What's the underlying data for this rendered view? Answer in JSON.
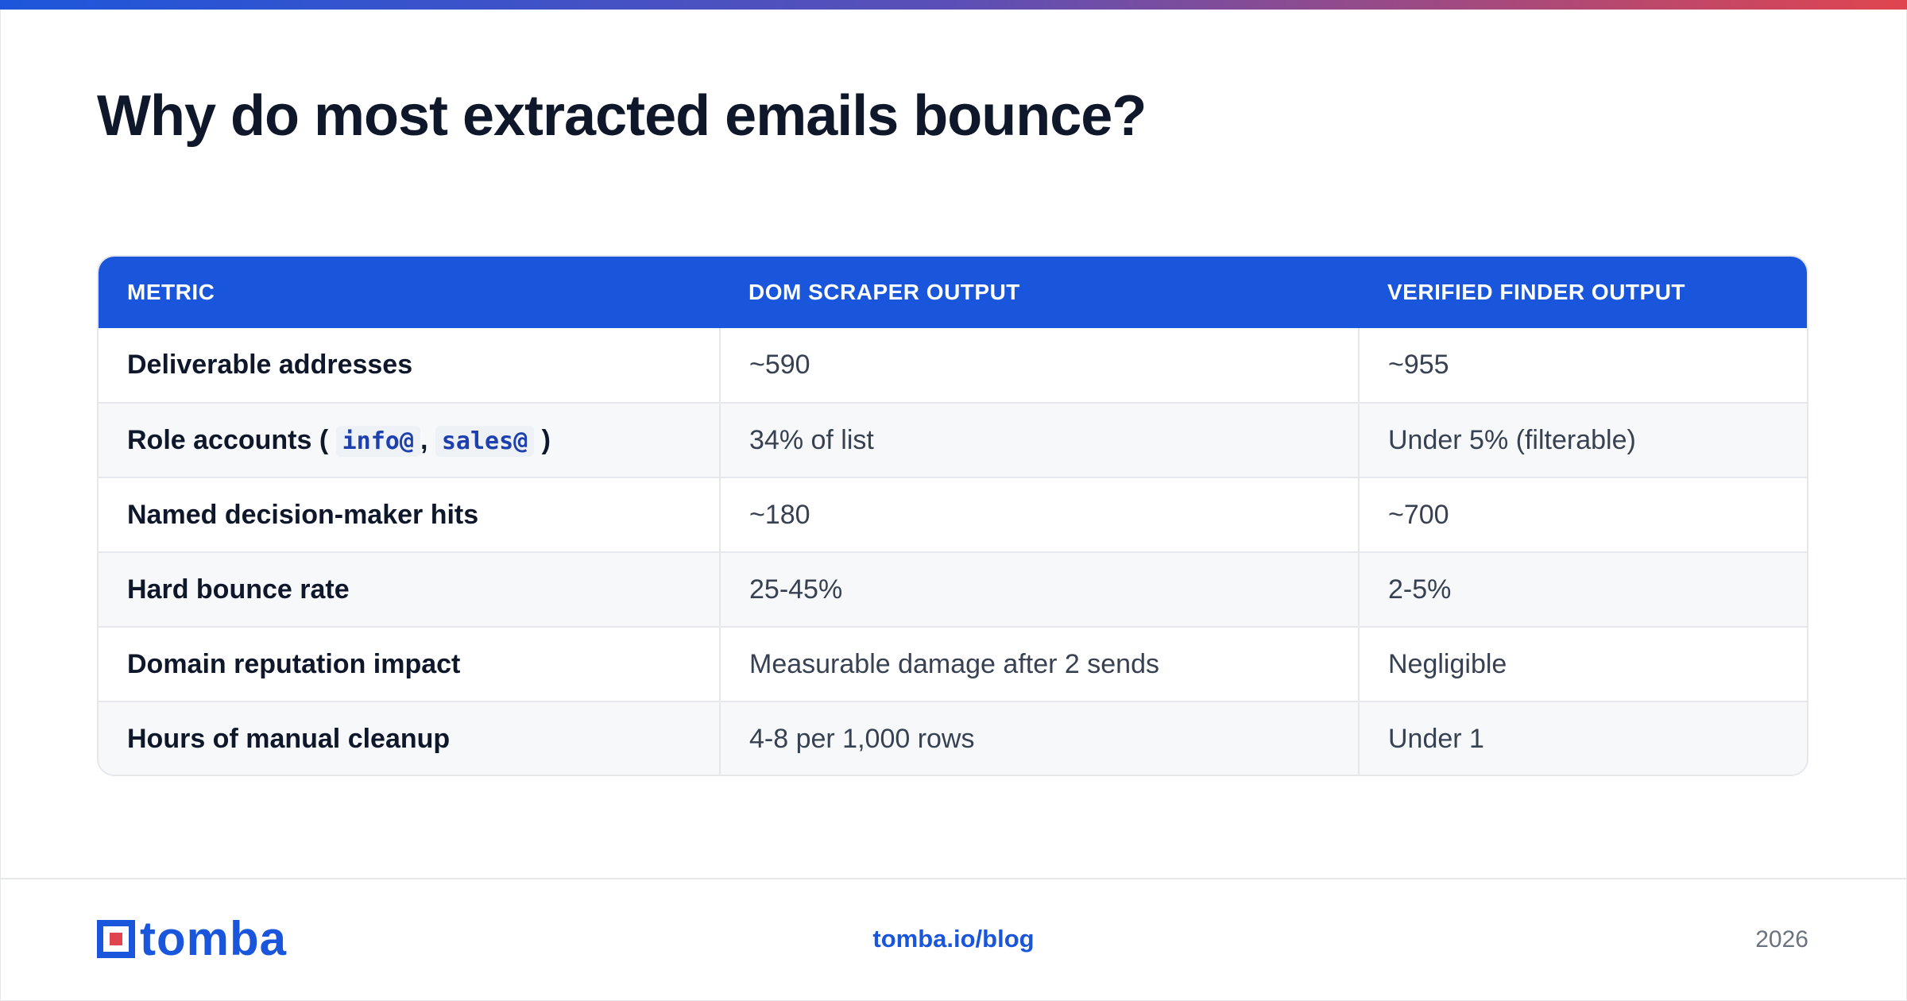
{
  "page": {
    "title": "Why do most extracted emails bounce?"
  },
  "table": {
    "headers": [
      "METRIC",
      "DOM SCRAPER OUTPUT",
      "VERIFIED FINDER OUTPUT"
    ],
    "rows": [
      {
        "metric": "Deliverable addresses",
        "scraper": "~590",
        "verified": "~955"
      },
      {
        "metric_prefix": "Role accounts (",
        "code_1": "info@",
        "separator": ",",
        "code_2": "sales@",
        "metric_suffix": ")",
        "scraper": "34% of list",
        "verified": "Under 5% (filterable)"
      },
      {
        "metric": "Named decision-maker hits",
        "scraper": "~180",
        "verified": "~700"
      },
      {
        "metric": "Hard bounce rate",
        "scraper": "25-45%",
        "verified": "2-5%"
      },
      {
        "metric": "Domain reputation impact",
        "scraper": "Measurable damage after 2 sends",
        "verified": "Negligible"
      },
      {
        "metric": "Hours of manual cleanup",
        "scraper": "4-8 per 1,000 rows",
        "verified": "Under 1"
      }
    ]
  },
  "footer": {
    "logo_text": "tomba",
    "link": "tomba.io/blog",
    "year": "2026"
  },
  "colors": {
    "accent": "#1a56db",
    "header_bg": "#1a56db",
    "logo_red": "#e0454f",
    "gradient_start": "#1d56db",
    "gradient_end": "#e0454f"
  },
  "icons": {
    "logo_mark": "tomba-logo-icon"
  }
}
